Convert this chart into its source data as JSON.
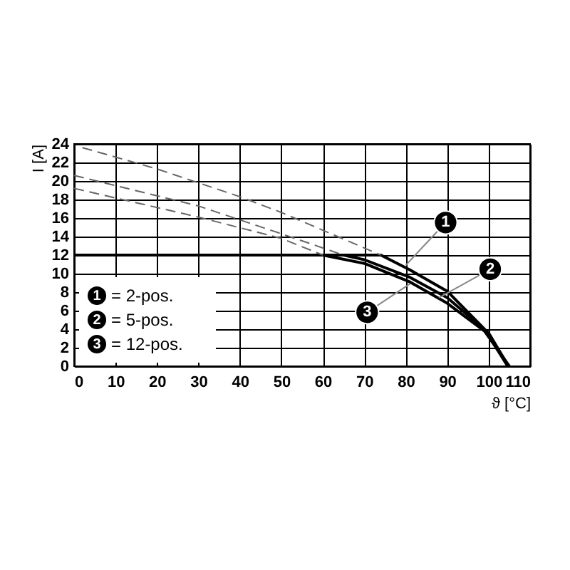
{
  "chart_data": {
    "type": "line",
    "xlabel": "ϑ [°C]",
    "ylabel": "I [A]",
    "xlim": [
      0,
      110
    ],
    "ylim": [
      0,
      24
    ],
    "xticks": [
      0,
      10,
      20,
      30,
      40,
      50,
      60,
      70,
      80,
      90,
      100,
      110
    ],
    "yticks": [
      0,
      2,
      4,
      6,
      8,
      10,
      12,
      14,
      16,
      18,
      20,
      22,
      24
    ],
    "grid": true,
    "legend": "bottom left",
    "series": [
      {
        "name": "= 2-pos.",
        "color": "#000000",
        "x": [
          0,
          74,
          81,
          90,
          99,
          104.6
        ],
        "values": [
          12,
          12,
          10.4,
          8.1,
          4,
          0
        ]
      },
      {
        "name": "= 5-pos.",
        "color": "#000000",
        "x": [
          0,
          65,
          70,
          81,
          90,
          100,
          104.8
        ],
        "values": [
          12,
          12,
          11.5,
          9.6,
          7.4,
          3.6,
          0
        ]
      },
      {
        "name": "= 12-pos.",
        "color": "#000000",
        "x": [
          0,
          60,
          70,
          81,
          90,
          99,
          105
        ],
        "values": [
          12,
          12,
          11.1,
          9.1,
          6.8,
          3.8,
          0
        ]
      },
      {
        "color": "#666666",
        "line_style": "dashed",
        "x": [
          2,
          20,
          40,
          50,
          74
        ],
        "values": [
          23.6,
          21.3,
          18.3,
          16.6,
          12
        ]
      },
      {
        "color": "#666666",
        "line_style": "dashed",
        "x": [
          0,
          30,
          50,
          65
        ],
        "values": [
          20.6,
          17.3,
          14.3,
          12
        ]
      },
      {
        "color": "#666666",
        "line_style": "dashed",
        "x": [
          0,
          30,
          50,
          60
        ],
        "values": [
          19.2,
          16.1,
          13.8,
          12
        ]
      }
    ],
    "annotations": [
      {
        "text": "1",
        "x": 80,
        "y": 10.9
      },
      {
        "text": "2",
        "x": 88,
        "y": 7.4
      },
      {
        "text": "3",
        "x": 81,
        "y": 8.9
      }
    ]
  }
}
